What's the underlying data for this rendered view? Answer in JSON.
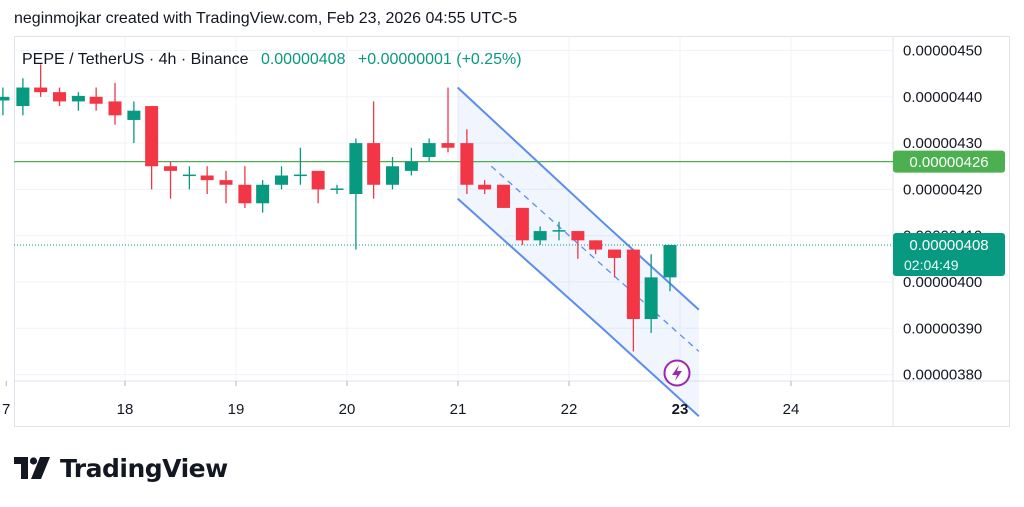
{
  "caption": "neginmojkar created with TradingView.com, Feb 23, 2026 04:55 UTC-5",
  "header": {
    "symbol": "PEPE / TetherUS · 4h · Binance",
    "price": "0.00000408",
    "change": "+0.00000001 (+0.25%)"
  },
  "logo": {
    "text": "TradingView",
    "icon": "tradingview-logo-icon"
  },
  "colors": {
    "up": "#089981",
    "down": "#f23645",
    "channel": "#5b8def",
    "level": "#4caf50",
    "grid": "#f0f3fa"
  },
  "chart_data": {
    "type": "candlestick",
    "title": "PEPE / TetherUS · 4h · Binance",
    "x_ticks": [
      "7",
      "18",
      "19",
      "20",
      "21",
      "22",
      "23",
      "24"
    ],
    "y_ticks": [
      "0.00000450",
      "0.00000440",
      "0.00000430",
      "0.00000420",
      "0.00000410",
      "0.00000400",
      "0.00000390",
      "0.00000380"
    ],
    "ylim": [
      3.75,
      4.53
    ],
    "y_unit": "1e-6",
    "horizontal_line": {
      "value": 4.26,
      "label": "0.00000426"
    },
    "last_price": {
      "value": 4.08,
      "label": "0.00000408",
      "countdown": "02:04:49"
    },
    "channel": {
      "upper": [
        [
          20.997,
          4.42
        ],
        [
          22.3,
          4.13
        ],
        [
          23.17,
          3.94
        ]
      ],
      "lower": [
        [
          20.997,
          4.18
        ],
        [
          22.3,
          3.9
        ],
        [
          23.17,
          3.71
        ]
      ],
      "mid": [
        [
          21.3,
          4.25
        ],
        [
          23.17,
          3.85
        ]
      ]
    },
    "candles": [
      {
        "t": 16.9,
        "o": 4.392,
        "h": 4.42,
        "l": 4.36,
        "c": 4.4
      },
      {
        "t": 17.08,
        "o": 4.38,
        "h": 4.44,
        "l": 4.36,
        "c": 4.42
      },
      {
        "t": 17.24,
        "o": 4.42,
        "h": 4.47,
        "l": 4.4,
        "c": 4.41
      },
      {
        "t": 17.41,
        "o": 4.41,
        "h": 4.42,
        "l": 4.38,
        "c": 4.39
      },
      {
        "t": 17.58,
        "o": 4.39,
        "h": 4.41,
        "l": 4.37,
        "c": 4.402
      },
      {
        "t": 17.74,
        "o": 4.4,
        "h": 4.42,
        "l": 4.37,
        "c": 4.385
      },
      {
        "t": 17.91,
        "o": 4.39,
        "h": 4.43,
        "l": 4.34,
        "c": 4.36
      },
      {
        "t": 18.08,
        "o": 4.35,
        "h": 4.39,
        "l": 4.3,
        "c": 4.37
      },
      {
        "t": 18.24,
        "o": 4.38,
        "h": 4.38,
        "l": 4.2,
        "c": 4.25
      },
      {
        "t": 18.41,
        "o": 4.25,
        "h": 4.26,
        "l": 4.18,
        "c": 4.24
      },
      {
        "t": 18.58,
        "o": 4.23,
        "h": 4.25,
        "l": 4.2,
        "c": 4.232
      },
      {
        "t": 18.74,
        "o": 4.23,
        "h": 4.25,
        "l": 4.19,
        "c": 4.22
      },
      {
        "t": 18.91,
        "o": 4.22,
        "h": 4.24,
        "l": 4.17,
        "c": 4.21
      },
      {
        "t": 19.08,
        "o": 4.21,
        "h": 4.25,
        "l": 4.16,
        "c": 4.17
      },
      {
        "t": 19.24,
        "o": 4.17,
        "h": 4.22,
        "l": 4.15,
        "c": 4.21
      },
      {
        "t": 19.41,
        "o": 4.21,
        "h": 4.25,
        "l": 4.2,
        "c": 4.23
      },
      {
        "t": 19.58,
        "o": 4.23,
        "h": 4.29,
        "l": 4.21,
        "c": 4.232
      },
      {
        "t": 19.74,
        "o": 4.24,
        "h": 4.24,
        "l": 4.17,
        "c": 4.2
      },
      {
        "t": 19.91,
        "o": 4.2,
        "h": 4.21,
        "l": 4.19,
        "c": 4.202
      },
      {
        "t": 20.08,
        "o": 4.19,
        "h": 4.31,
        "l": 4.07,
        "c": 4.3
      },
      {
        "t": 20.24,
        "o": 4.3,
        "h": 4.39,
        "l": 4.18,
        "c": 4.21
      },
      {
        "t": 20.41,
        "o": 4.21,
        "h": 4.27,
        "l": 4.2,
        "c": 4.25
      },
      {
        "t": 20.58,
        "o": 4.24,
        "h": 4.29,
        "l": 4.23,
        "c": 4.26
      },
      {
        "t": 20.74,
        "o": 4.27,
        "h": 4.31,
        "l": 4.26,
        "c": 4.3
      },
      {
        "t": 20.91,
        "o": 4.3,
        "h": 4.42,
        "l": 4.28,
        "c": 4.29
      },
      {
        "t": 21.08,
        "o": 4.3,
        "h": 4.33,
        "l": 4.19,
        "c": 4.21
      },
      {
        "t": 21.24,
        "o": 4.21,
        "h": 4.22,
        "l": 4.19,
        "c": 4.2
      },
      {
        "t": 21.41,
        "o": 4.21,
        "h": 4.21,
        "l": 4.16,
        "c": 4.16
      },
      {
        "t": 21.58,
        "o": 4.16,
        "h": 4.16,
        "l": 4.08,
        "c": 4.09
      },
      {
        "t": 21.74,
        "o": 4.09,
        "h": 4.12,
        "l": 4.08,
        "c": 4.11
      },
      {
        "t": 21.91,
        "o": 4.11,
        "h": 4.13,
        "l": 4.09,
        "c": 4.112
      },
      {
        "t": 22.08,
        "o": 4.11,
        "h": 4.11,
        "l": 4.05,
        "c": 4.09
      },
      {
        "t": 22.24,
        "o": 4.09,
        "h": 4.09,
        "l": 4.06,
        "c": 4.07
      },
      {
        "t": 22.41,
        "o": 4.07,
        "h": 4.07,
        "l": 4.01,
        "c": 4.052
      },
      {
        "t": 22.58,
        "o": 4.07,
        "h": 4.07,
        "l": 3.85,
        "c": 3.92
      },
      {
        "t": 22.74,
        "o": 3.92,
        "h": 4.06,
        "l": 3.89,
        "c": 4.01
      },
      {
        "t": 22.91,
        "o": 4.01,
        "h": 4.08,
        "l": 3.98,
        "c": 4.08
      }
    ]
  }
}
